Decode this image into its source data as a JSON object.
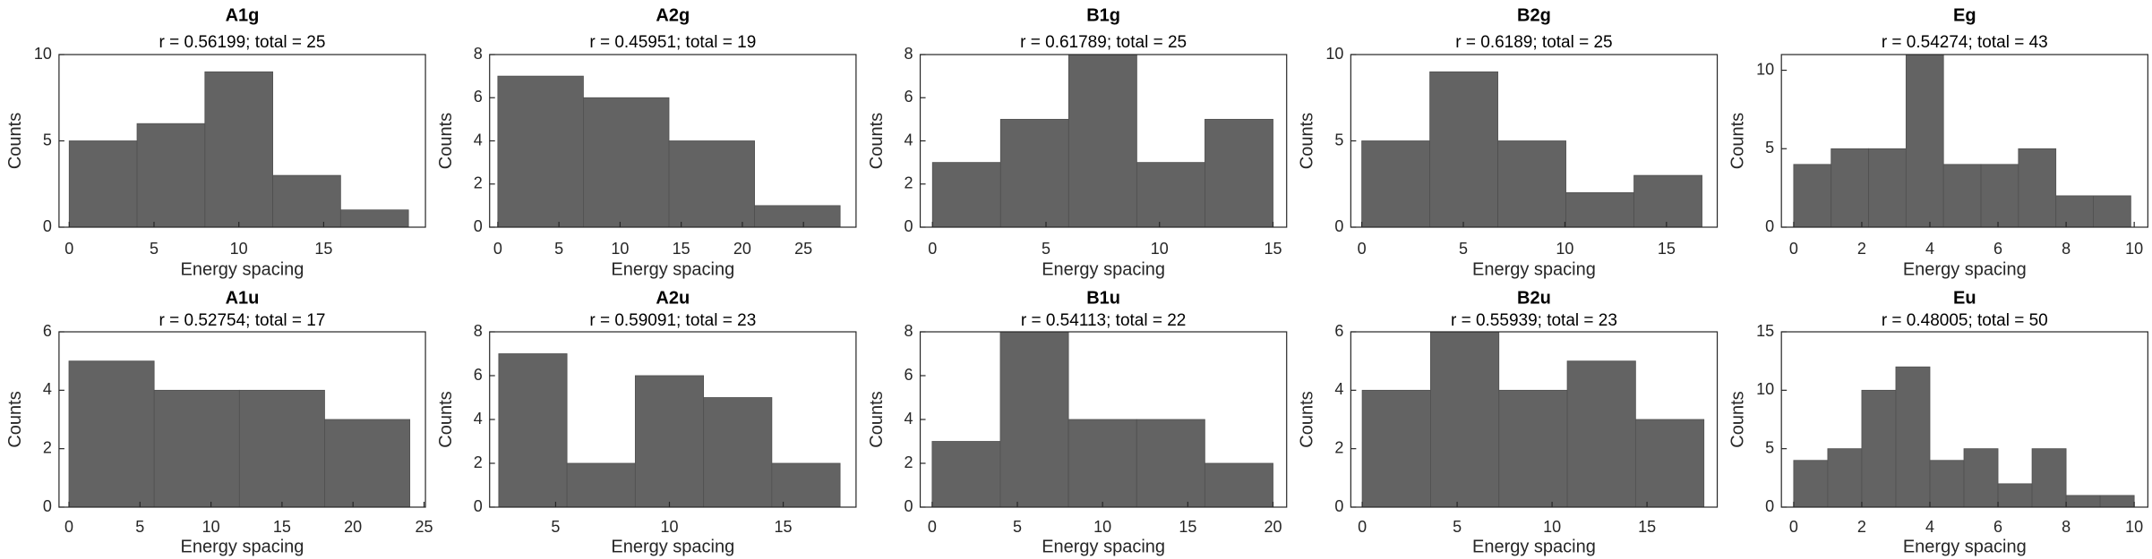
{
  "chart_data": [
    {
      "type": "histogram",
      "title": "A1g",
      "subtitle": "r = 0.56199; total = 25",
      "xlabel": "Energy spacing",
      "ylabel": "Counts",
      "color": "#636363",
      "bins": [
        0,
        4,
        8,
        12,
        16,
        20
      ],
      "values": [
        5,
        6,
        9,
        3,
        1
      ],
      "xlim": [
        -0.6,
        21
      ],
      "ylim": [
        0,
        10
      ],
      "xticks": [
        0,
        5,
        10,
        15
      ],
      "yticks": [
        0,
        5,
        10
      ]
    },
    {
      "type": "histogram",
      "title": "A2g",
      "subtitle": "r = 0.45951; total = 19",
      "xlabel": "Energy spacing",
      "ylabel": "Counts",
      "color": "#636363",
      "bins": [
        0,
        7,
        14,
        21,
        28
      ],
      "values": [
        7,
        6,
        4,
        1
      ],
      "xlim": [
        -0.67,
        29.3
      ],
      "ylim": [
        0,
        8
      ],
      "xticks": [
        0,
        5,
        10,
        15,
        20,
        25
      ],
      "yticks": [
        0,
        2,
        4,
        6,
        8
      ]
    },
    {
      "type": "histogram",
      "title": "B1g",
      "subtitle": "r = 0.61789; total = 25",
      "xlabel": "Energy spacing",
      "ylabel": "Counts",
      "color": "#636363",
      "bins": [
        0,
        3,
        6,
        9,
        12,
        15
      ],
      "values": [
        3,
        5,
        8,
        3,
        5
      ],
      "xlim": [
        -0.54,
        15.6
      ],
      "ylim": [
        0,
        8
      ],
      "xticks": [
        0,
        5,
        10,
        15
      ],
      "yticks": [
        0,
        2,
        4,
        6,
        8
      ]
    },
    {
      "type": "histogram",
      "title": "B2g",
      "subtitle": "r = 0.6189; total = 25",
      "xlabel": "Energy spacing",
      "ylabel": "Counts",
      "color": "#636363",
      "bins": [
        0,
        3.35,
        6.7,
        10.05,
        13.4,
        16.75
      ],
      "values": [
        5,
        9,
        5,
        2,
        3
      ],
      "xlim": [
        -0.54,
        17.5
      ],
      "ylim": [
        0,
        10
      ],
      "xticks": [
        0,
        5,
        10,
        15
      ],
      "yticks": [
        0,
        5,
        10
      ]
    },
    {
      "type": "histogram",
      "title": "Eg",
      "subtitle": "r = 0.54274; total = 43",
      "xlabel": "Energy spacing",
      "ylabel": "Counts",
      "color": "#636363",
      "bins": [
        0,
        1.1,
        2.2,
        3.3,
        4.4,
        5.5,
        6.6,
        7.7,
        8.8,
        9.9
      ],
      "values": [
        4,
        5,
        5,
        11,
        4,
        4,
        5,
        2,
        2
      ],
      "xlim": [
        -0.36,
        10.4
      ],
      "ylim": [
        0,
        11
      ],
      "xticks": [
        0,
        2,
        4,
        6,
        8,
        10
      ],
      "yticks": [
        0,
        5,
        10
      ]
    },
    {
      "type": "histogram",
      "title": "A1u",
      "subtitle": "r = 0.52754; total = 17",
      "xlabel": "Energy spacing",
      "ylabel": "Counts",
      "color": "#636363",
      "bins": [
        0,
        6,
        12,
        18,
        24
      ],
      "values": [
        5,
        4,
        4,
        3
      ],
      "xlim": [
        -0.7,
        25.1
      ],
      "ylim": [
        0,
        6
      ],
      "xticks": [
        0,
        5,
        10,
        15,
        20,
        25
      ],
      "yticks": [
        0,
        2,
        4,
        6
      ]
    },
    {
      "type": "histogram",
      "title": "A2u",
      "subtitle": "r = 0.59091; total = 23",
      "xlabel": "Energy spacing",
      "ylabel": "Counts",
      "color": "#636363",
      "bins": [
        2.5,
        5.5,
        8.5,
        11.5,
        14.5,
        17.5
      ],
      "values": [
        7,
        2,
        6,
        5,
        2
      ],
      "xlim": [
        2.1,
        18.2
      ],
      "ylim": [
        0,
        8
      ],
      "xticks": [
        5,
        10,
        15
      ],
      "yticks": [
        0,
        2,
        4,
        6,
        8
      ]
    },
    {
      "type": "histogram",
      "title": "B1u",
      "subtitle": "r = 0.54113; total = 22",
      "xlabel": "Energy spacing",
      "ylabel": "Counts",
      "color": "#636363",
      "bins": [
        0,
        4,
        8,
        12,
        16,
        20
      ],
      "values": [
        3,
        8,
        4,
        4,
        2
      ],
      "xlim": [
        -0.7,
        20.8
      ],
      "ylim": [
        0,
        8
      ],
      "xticks": [
        0,
        5,
        10,
        15,
        20
      ],
      "yticks": [
        0,
        2,
        4,
        6,
        8
      ]
    },
    {
      "type": "histogram",
      "title": "B2u",
      "subtitle": "r = 0.55939; total = 23",
      "xlabel": "Energy spacing",
      "ylabel": "Counts",
      "color": "#636363",
      "bins": [
        0,
        3.6,
        7.2,
        10.8,
        14.4,
        18
      ],
      "values": [
        4,
        6,
        4,
        5,
        3
      ],
      "xlim": [
        -0.6,
        18.7
      ],
      "ylim": [
        0,
        6
      ],
      "xticks": [
        0,
        5,
        10,
        15
      ],
      "yticks": [
        0,
        2,
        4,
        6
      ]
    },
    {
      "type": "histogram",
      "title": "Eu",
      "subtitle": "r = 0.48005; total = 50",
      "xlabel": "Energy spacing",
      "ylabel": "Counts",
      "color": "#636363",
      "bins": [
        0,
        1,
        2,
        3,
        4,
        5,
        6,
        7,
        8,
        9,
        10
      ],
      "values": [
        4,
        5,
        10,
        12,
        4,
        5,
        2,
        5,
        1,
        1
      ],
      "xlim": [
        -0.36,
        10.4
      ],
      "ylim": [
        0,
        15
      ],
      "xticks": [
        0,
        2,
        4,
        6,
        8,
        10
      ],
      "yticks": [
        0,
        5,
        10,
        15
      ]
    }
  ]
}
